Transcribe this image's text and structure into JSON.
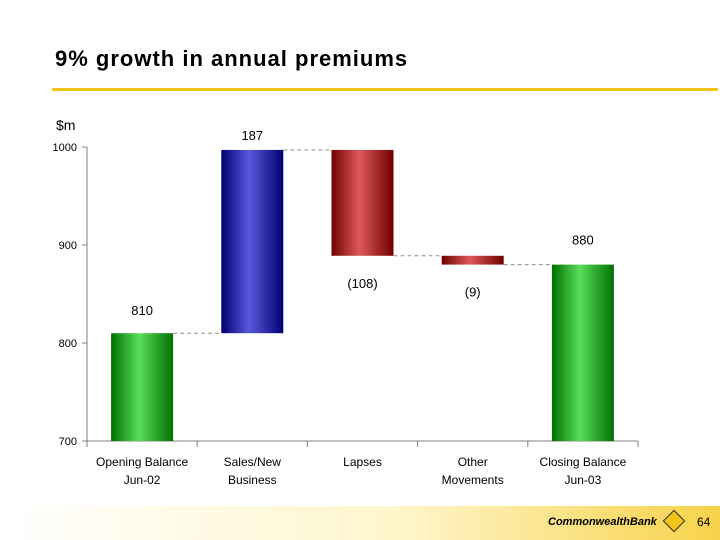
{
  "title": "9% growth in annual premiums",
  "unit_label": "$m",
  "chart_data": {
    "type": "bar",
    "subtype": "waterfall",
    "title": "9% growth in annual premiums",
    "ylabel": "$m",
    "ylim": [
      700,
      1000
    ],
    "yticks": [
      700,
      800,
      900,
      1000
    ],
    "categories": [
      [
        "Opening Balance",
        "Jun-02"
      ],
      [
        "Sales/New",
        "Business"
      ],
      [
        "Lapses"
      ],
      [
        "Other",
        "Movements"
      ],
      [
        "Closing Balance",
        "Jun-03"
      ]
    ],
    "bars": [
      {
        "kind": "total",
        "start": 700,
        "end": 810,
        "label": "810",
        "color": "#00cc00"
      },
      {
        "kind": "delta",
        "start": 810,
        "end": 997,
        "label": "187",
        "color": "#0000cc"
      },
      {
        "kind": "delta",
        "start": 997,
        "end": 889,
        "label": "(108)",
        "color": "#cc0000"
      },
      {
        "kind": "delta",
        "start": 889,
        "end": 880,
        "label": "(9)",
        "color": "#cc0000"
      },
      {
        "kind": "total",
        "start": 700,
        "end": 880,
        "label": "880",
        "color": "#00cc00"
      }
    ]
  },
  "footer": {
    "logo_text": "CommonwealthBank",
    "page_number": "64"
  }
}
